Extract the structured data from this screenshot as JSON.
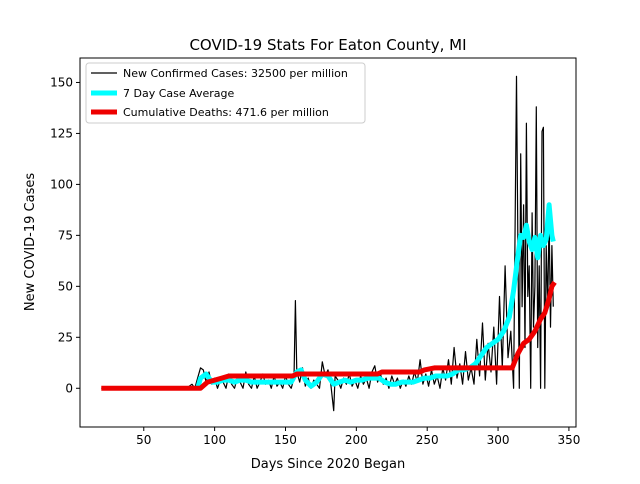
{
  "chart_data": {
    "type": "line",
    "title": "COVID-19 Stats For Eaton County, MI",
    "xlabel": "Days Since 2020 Began",
    "ylabel": "New COVID-19 Cases",
    "xlim": [
      5,
      355
    ],
    "ylim": [
      -19,
      162
    ],
    "xticks": [
      50,
      100,
      150,
      200,
      250,
      300,
      350
    ],
    "yticks": [
      0,
      25,
      50,
      75,
      100,
      125,
      150
    ],
    "legend_position": "upper-left",
    "series": [
      {
        "name": "New Confirmed Cases: 32500 per million",
        "color": "#000000",
        "points": [
          [
            20,
            0
          ],
          [
            70,
            0
          ],
          [
            80,
            0
          ],
          [
            84,
            2
          ],
          [
            86,
            0
          ],
          [
            88,
            5
          ],
          [
            90,
            10
          ],
          [
            92,
            9
          ],
          [
            94,
            3
          ],
          [
            96,
            8
          ],
          [
            98,
            2
          ],
          [
            100,
            5
          ],
          [
            102,
            0
          ],
          [
            104,
            4
          ],
          [
            106,
            3
          ],
          [
            108,
            0
          ],
          [
            110,
            7
          ],
          [
            112,
            2
          ],
          [
            114,
            0
          ],
          [
            116,
            5
          ],
          [
            118,
            3
          ],
          [
            120,
            0
          ],
          [
            122,
            8
          ],
          [
            124,
            2
          ],
          [
            126,
            0
          ],
          [
            128,
            6
          ],
          [
            130,
            0
          ],
          [
            132,
            3
          ],
          [
            134,
            7
          ],
          [
            136,
            2
          ],
          [
            138,
            4
          ],
          [
            140,
            0
          ],
          [
            142,
            6
          ],
          [
            144,
            1
          ],
          [
            146,
            3
          ],
          [
            148,
            0
          ],
          [
            150,
            6
          ],
          [
            152,
            2
          ],
          [
            154,
            0
          ],
          [
            156,
            5
          ],
          [
            157,
            43
          ],
          [
            158,
            8
          ],
          [
            160,
            3
          ],
          [
            162,
            10
          ],
          [
            164,
            1
          ],
          [
            166,
            5
          ],
          [
            168,
            0
          ],
          [
            170,
            4
          ],
          [
            172,
            2
          ],
          [
            174,
            0
          ],
          [
            176,
            13
          ],
          [
            178,
            6
          ],
          [
            180,
            9
          ],
          [
            182,
            2
          ],
          [
            184,
            -11
          ],
          [
            185,
            6
          ],
          [
            187,
            4
          ],
          [
            189,
            0
          ],
          [
            191,
            5
          ],
          [
            193,
            2
          ],
          [
            195,
            7
          ],
          [
            197,
            1
          ],
          [
            199,
            4
          ],
          [
            201,
            0
          ],
          [
            203,
            6
          ],
          [
            205,
            2
          ],
          [
            207,
            5
          ],
          [
            209,
            0
          ],
          [
            211,
            8
          ],
          [
            213,
            11
          ],
          [
            215,
            3
          ],
          [
            217,
            7
          ],
          [
            219,
            2
          ],
          [
            221,
            5
          ],
          [
            223,
            0
          ],
          [
            225,
            6
          ],
          [
            227,
            2
          ],
          [
            229,
            5
          ],
          [
            231,
            0
          ],
          [
            233,
            4
          ],
          [
            235,
            1
          ],
          [
            237,
            6
          ],
          [
            239,
            2
          ],
          [
            241,
            8
          ],
          [
            243,
            3
          ],
          [
            245,
            14
          ],
          [
            247,
            2
          ],
          [
            249,
            7
          ],
          [
            251,
            1
          ],
          [
            253,
            9
          ],
          [
            255,
            2
          ],
          [
            257,
            6
          ],
          [
            259,
            0
          ],
          [
            261,
            10
          ],
          [
            263,
            4
          ],
          [
            265,
            14
          ],
          [
            267,
            2
          ],
          [
            269,
            20
          ],
          [
            271,
            5
          ],
          [
            273,
            12
          ],
          [
            275,
            2
          ],
          [
            277,
            18
          ],
          [
            279,
            4
          ],
          [
            281,
            10
          ],
          [
            283,
            2
          ],
          [
            285,
            24
          ],
          [
            287,
            6
          ],
          [
            289,
            32
          ],
          [
            291,
            4
          ],
          [
            293,
            22
          ],
          [
            295,
            8
          ],
          [
            297,
            30
          ],
          [
            299,
            2
          ],
          [
            301,
            45
          ],
          [
            303,
            10
          ],
          [
            305,
            60
          ],
          [
            307,
            15
          ],
          [
            309,
            28
          ],
          [
            311,
            0
          ],
          [
            313,
            153
          ],
          [
            314,
            70
          ],
          [
            315,
            0
          ],
          [
            316,
            115
          ],
          [
            317,
            40
          ],
          [
            318,
            90
          ],
          [
            319,
            20
          ],
          [
            320,
            130
          ],
          [
            321,
            45
          ],
          [
            322,
            60
          ],
          [
            323,
            0
          ],
          [
            324,
            86
          ],
          [
            325,
            30
          ],
          [
            326,
            50
          ],
          [
            327,
            138
          ],
          [
            328,
            20
          ],
          [
            329,
            60
          ],
          [
            330,
            0
          ],
          [
            331,
            126
          ],
          [
            332,
            128
          ],
          [
            333,
            0
          ],
          [
            334,
            70
          ],
          [
            335,
            40
          ],
          [
            336,
            85
          ],
          [
            337,
            30
          ],
          [
            338,
            70
          ],
          [
            339,
            40
          ]
        ]
      },
      {
        "name": "7 Day Case Average",
        "color": "#00ffff",
        "points": [
          [
            88,
            0
          ],
          [
            90,
            5
          ],
          [
            94,
            7
          ],
          [
            98,
            3
          ],
          [
            102,
            3
          ],
          [
            106,
            4
          ],
          [
            110,
            4
          ],
          [
            114,
            3
          ],
          [
            118,
            4
          ],
          [
            122,
            4
          ],
          [
            126,
            3
          ],
          [
            130,
            3
          ],
          [
            134,
            3
          ],
          [
            138,
            3
          ],
          [
            142,
            3
          ],
          [
            146,
            3
          ],
          [
            150,
            3
          ],
          [
            154,
            3
          ],
          [
            158,
            8
          ],
          [
            161,
            9
          ],
          [
            164,
            4
          ],
          [
            168,
            1
          ],
          [
            172,
            3
          ],
          [
            176,
            7
          ],
          [
            180,
            6
          ],
          [
            184,
            2
          ],
          [
            188,
            3
          ],
          [
            192,
            4
          ],
          [
            196,
            3
          ],
          [
            200,
            4
          ],
          [
            204,
            4
          ],
          [
            208,
            5
          ],
          [
            212,
            5
          ],
          [
            216,
            5
          ],
          [
            220,
            3
          ],
          [
            224,
            2
          ],
          [
            228,
            2
          ],
          [
            232,
            3
          ],
          [
            236,
            3
          ],
          [
            240,
            3
          ],
          [
            244,
            4
          ],
          [
            248,
            5
          ],
          [
            252,
            5
          ],
          [
            256,
            6
          ],
          [
            260,
            6
          ],
          [
            264,
            6
          ],
          [
            268,
            7
          ],
          [
            272,
            9
          ],
          [
            276,
            9
          ],
          [
            280,
            10
          ],
          [
            284,
            12
          ],
          [
            288,
            16
          ],
          [
            292,
            20
          ],
          [
            296,
            22
          ],
          [
            300,
            24
          ],
          [
            304,
            28
          ],
          [
            308,
            35
          ],
          [
            311,
            48
          ],
          [
            314,
            65
          ],
          [
            316,
            75
          ],
          [
            318,
            74
          ],
          [
            320,
            80
          ],
          [
            322,
            72
          ],
          [
            324,
            68
          ],
          [
            326,
            74
          ],
          [
            328,
            64
          ],
          [
            330,
            75
          ],
          [
            332,
            70
          ],
          [
            334,
            73
          ],
          [
            336,
            90
          ],
          [
            338,
            75
          ],
          [
            339,
            72
          ]
        ]
      },
      {
        "name": "Cumulative Deaths: 471.6 per million",
        "color": "#ee0000",
        "points": [
          [
            20,
            0
          ],
          [
            90,
            0
          ],
          [
            95,
            3
          ],
          [
            100,
            4
          ],
          [
            105,
            5
          ],
          [
            110,
            6
          ],
          [
            116,
            6
          ],
          [
            120,
            6
          ],
          [
            155,
            6
          ],
          [
            158,
            7
          ],
          [
            215,
            7
          ],
          [
            218,
            8
          ],
          [
            245,
            8
          ],
          [
            248,
            9
          ],
          [
            255,
            10
          ],
          [
            270,
            10
          ],
          [
            285,
            10
          ],
          [
            300,
            10
          ],
          [
            310,
            10
          ],
          [
            314,
            17
          ],
          [
            318,
            22
          ],
          [
            322,
            24
          ],
          [
            326,
            28
          ],
          [
            330,
            34
          ],
          [
            333,
            37
          ],
          [
            336,
            44
          ],
          [
            338,
            50
          ],
          [
            340,
            52
          ]
        ]
      }
    ]
  }
}
